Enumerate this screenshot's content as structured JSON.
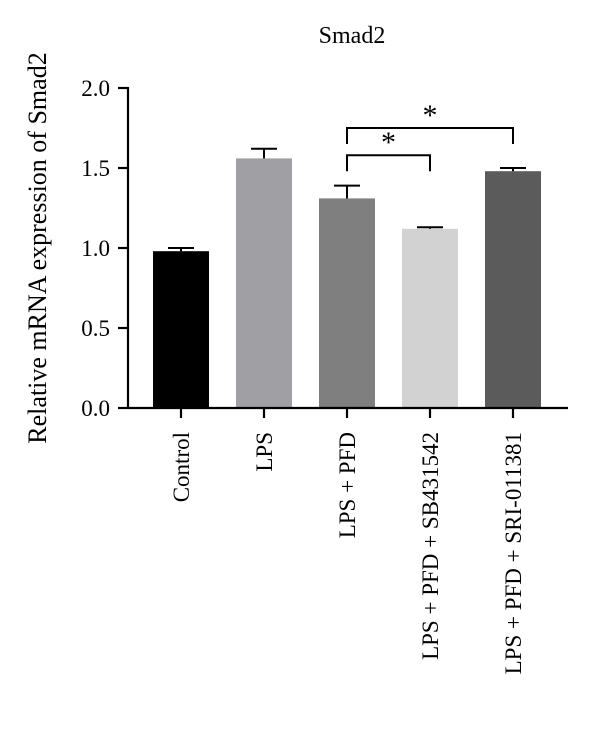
{
  "chart_data": {
    "type": "bar",
    "title": "Smad2",
    "ylabel": "Relative mRNA expression of Smad2",
    "xlabel": "",
    "ylim": [
      0,
      2.0
    ],
    "yticks": [
      {
        "value": 0.0,
        "label": "0.0"
      },
      {
        "value": 0.5,
        "label": "0.5"
      },
      {
        "value": 1.0,
        "label": "1.0"
      },
      {
        "value": 1.5,
        "label": "1.5"
      },
      {
        "value": 2.0,
        "label": "2.0"
      }
    ],
    "categories": [
      "Control",
      "LPS",
      "LPS + PFD",
      "LPS + PFD + SB431542",
      "LPS + PFD + SRI-011381"
    ],
    "values": [
      0.98,
      1.56,
      1.31,
      1.12,
      1.48
    ],
    "errors": [
      0.02,
      0.06,
      0.08,
      0.01,
      0.02
    ],
    "colors": [
      "#000000",
      "#a09fa4",
      "#7f7f7f",
      "#d2d2d2",
      "#5b5b5b"
    ],
    "significance": [
      {
        "from": 2,
        "to": 3,
        "y": 1.58,
        "label": "*"
      },
      {
        "from": 2,
        "to": 4,
        "y": 1.75,
        "label": "*"
      }
    ],
    "grid": false,
    "legend": "none"
  }
}
